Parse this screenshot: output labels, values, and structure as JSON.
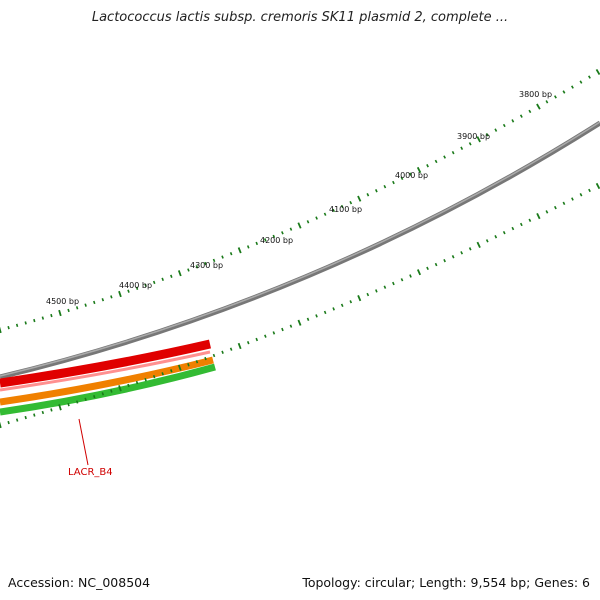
{
  "title": "Lactococcus lactis subsp. cremoris SK11 plasmid 2, complete ...",
  "footer": {
    "accession": "Accession: NC_008504",
    "summary": "Topology: circular; Length: 9,554 bp; Genes: 6"
  },
  "scale": {
    "unit": "bp",
    "labels": [
      "3800 bp",
      "3900 bp",
      "4000 bp",
      "4100 bp",
      "4200 bp",
      "4300 bp",
      "4400 bp",
      "4500 bp"
    ]
  },
  "colors": {
    "tick": "#1a7a1a",
    "backbone": "#888888",
    "gene_red": "#e00000",
    "gene_orange": "#f08000",
    "gene_green": "#33bb33",
    "label": "#d00000"
  },
  "genes": [
    {
      "name": "LACR_B4",
      "label": "LACR_B4"
    }
  ]
}
